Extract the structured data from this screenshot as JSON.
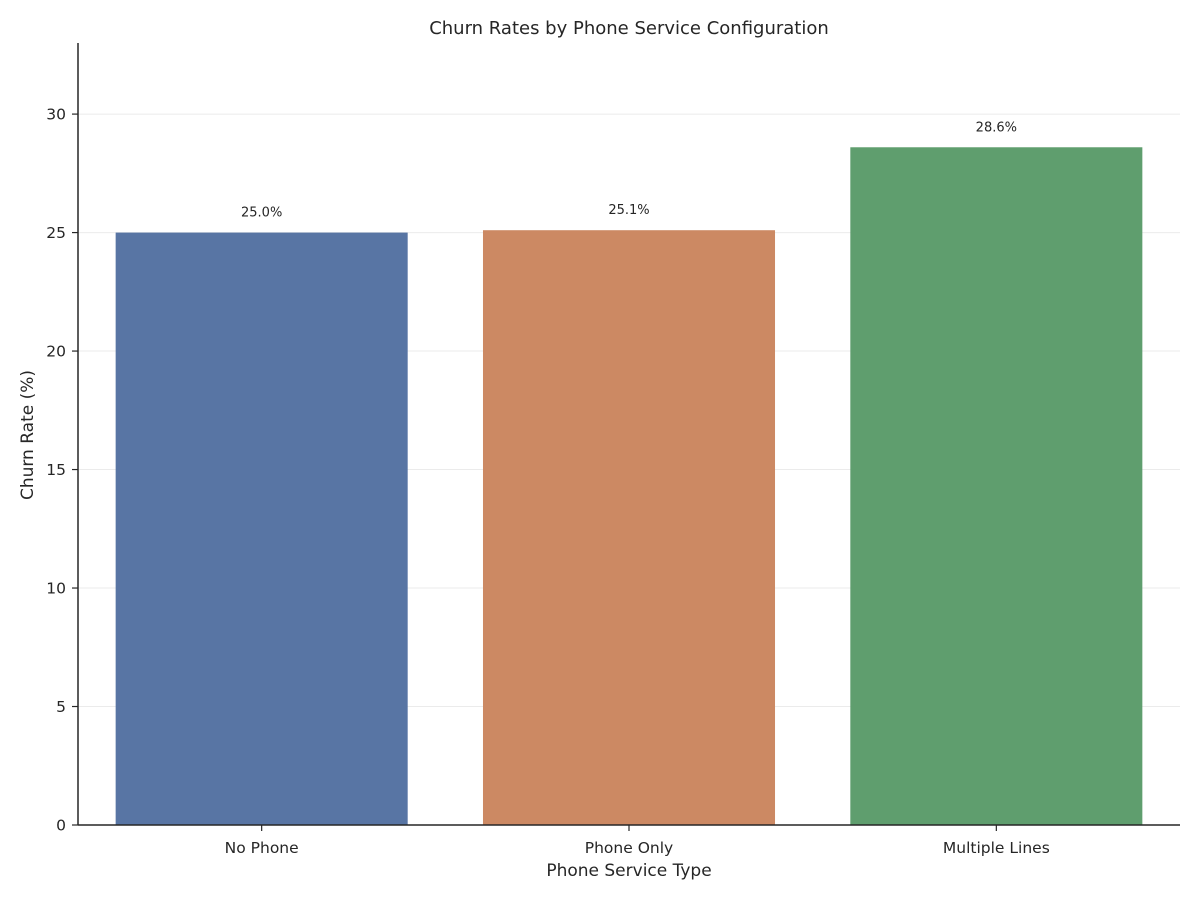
{
  "chart_data": {
    "type": "bar",
    "title": "Churn Rates by Phone Service Configuration",
    "xlabel": "Phone Service Type",
    "ylabel": "Churn Rate (%)",
    "categories": [
      "No Phone",
      "Phone Only",
      "Multiple Lines"
    ],
    "values": [
      25.0,
      25.1,
      28.6
    ],
    "data_labels": [
      "25.0%",
      "25.1%",
      "28.6%"
    ],
    "colors": [
      "#5875a4",
      "#cc8963",
      "#5f9e6e"
    ],
    "ylim": [
      0,
      33
    ],
    "yticks": [
      0,
      5,
      10,
      15,
      20,
      25,
      30
    ],
    "grid": true,
    "legend": "none"
  }
}
